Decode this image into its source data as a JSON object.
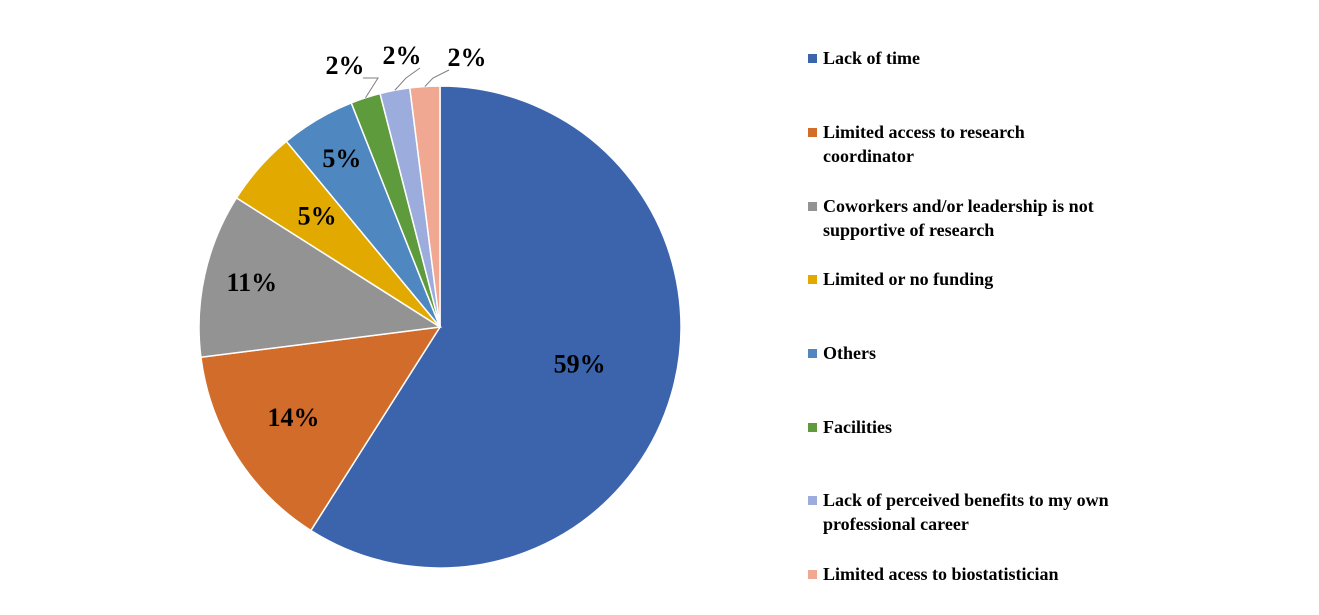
{
  "chart_data": {
    "type": "pie",
    "title": "",
    "slices": [
      {
        "label": "Lack of time",
        "value": 59,
        "value_label": "59%",
        "color": "#3C64AD"
      },
      {
        "label": "Limited access to research coordinator",
        "value": 14,
        "value_label": "14%",
        "color": "#D26C2A"
      },
      {
        "label": "Coworkers and/or leadership is not supportive of research",
        "value": 11,
        "value_label": "11%",
        "color": "#939393"
      },
      {
        "label": "Limited or no funding",
        "value": 5,
        "value_label": "5%",
        "color": "#E2AA00"
      },
      {
        "label": "Others",
        "value": 5,
        "value_label": "5%",
        "color": "#4F88C1"
      },
      {
        "label": "Facilities",
        "value": 2,
        "value_label": "2%",
        "color": "#5E9B3C"
      },
      {
        "label": "Lack of perceived benefits to my own professional career",
        "value": 2,
        "value_label": "2%",
        "color": "#9CACDD"
      },
      {
        "label": "Limited acess to biostatistician",
        "value": 2,
        "value_label": "2%",
        "color": "#F0A892"
      }
    ],
    "legend_position": "right"
  }
}
